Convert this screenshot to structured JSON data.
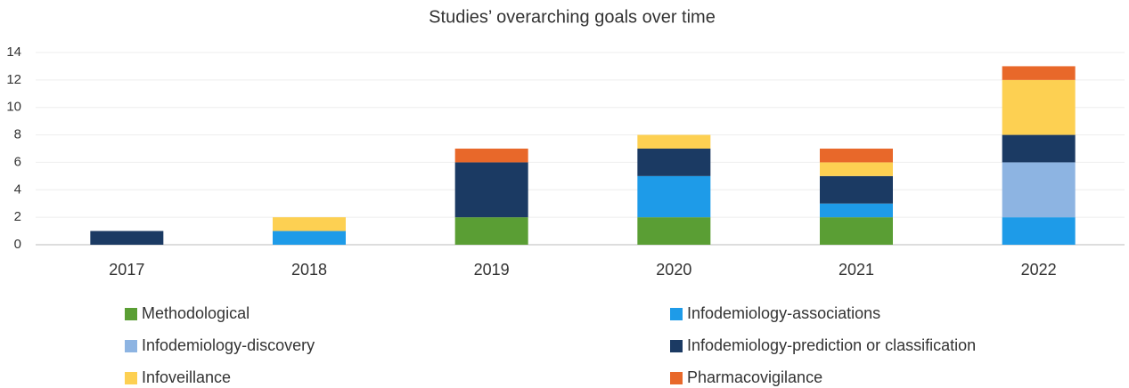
{
  "chart_data": {
    "type": "stacked_bar",
    "title": "Studies’ overarching goals over time",
    "categories": [
      "2017",
      "2018",
      "2019",
      "2020",
      "2021",
      "2022"
    ],
    "series": [
      {
        "name": "Methodological",
        "color": "#5a9e34",
        "values": [
          0,
          0,
          2,
          2,
          2,
          0
        ]
      },
      {
        "name": "Infodemiology-associations",
        "color": "#1e9be8",
        "values": [
          0,
          1,
          0,
          3,
          1,
          2
        ]
      },
      {
        "name": "Infodemiology-discovery",
        "color": "#8db4e2",
        "values": [
          0,
          0,
          0,
          0,
          0,
          4
        ]
      },
      {
        "name": "Infodemiology-prediction or classification",
        "color": "#1b3a63",
        "values": [
          1,
          0,
          4,
          2,
          2,
          2
        ]
      },
      {
        "name": "Infoveillance",
        "color": "#fdd052",
        "values": [
          0,
          1,
          0,
          1,
          1,
          4
        ]
      },
      {
        "name": "Pharmacovigilance",
        "color": "#e8682a",
        "values": [
          0,
          0,
          1,
          0,
          1,
          1
        ]
      }
    ],
    "ylim": [
      0,
      14
    ],
    "yticks": [
      0,
      2,
      4,
      6,
      8,
      10,
      12,
      14
    ],
    "grid": true,
    "legend": "bottom"
  }
}
